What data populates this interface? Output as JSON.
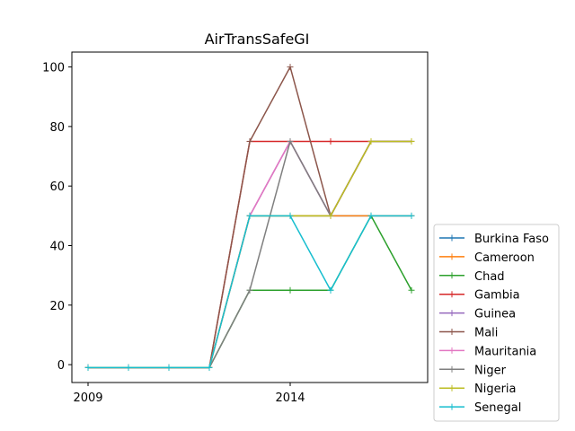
{
  "chart_data": {
    "type": "line",
    "title": "AirTransSafeGI",
    "xlabel": "",
    "ylabel": "",
    "x": [
      2009,
      2010,
      2011,
      2012,
      2013,
      2014,
      2015,
      2016,
      2017
    ],
    "xlim": [
      2008.6,
      2017.4
    ],
    "ylim": [
      -6,
      105
    ],
    "xticks": [
      2009,
      2014
    ],
    "yticks": [
      0,
      20,
      40,
      60,
      80,
      100
    ],
    "grid": false,
    "legend_position": "right-bottom",
    "series": [
      {
        "name": "Burkina Faso",
        "color": "#1f77b4",
        "values": [
          -1,
          -1,
          -1,
          -1,
          50,
          50,
          50,
          50,
          50
        ]
      },
      {
        "name": "Cameroon",
        "color": "#ff7f0e",
        "values": [
          -1,
          -1,
          -1,
          -1,
          50,
          50,
          50,
          50,
          50
        ]
      },
      {
        "name": "Chad",
        "color": "#2ca02c",
        "values": [
          -1,
          -1,
          -1,
          -1,
          25,
          25,
          25,
          50,
          25
        ]
      },
      {
        "name": "Gambia",
        "color": "#d62728",
        "values": [
          -1,
          -1,
          -1,
          -1,
          75,
          75,
          75,
          75,
          75
        ]
      },
      {
        "name": "Guinea",
        "color": "#9467bd",
        "values": [
          -1,
          -1,
          -1,
          -1,
          50,
          75,
          50,
          75,
          75
        ]
      },
      {
        "name": "Mali",
        "color": "#8c564b",
        "values": [
          -1,
          -1,
          -1,
          -1,
          75,
          100,
          50,
          75,
          75
        ]
      },
      {
        "name": "Mauritania",
        "color": "#e377c2",
        "values": [
          -1,
          -1,
          -1,
          -1,
          50,
          75,
          50,
          75,
          75
        ]
      },
      {
        "name": "Niger",
        "color": "#7f7f7f",
        "values": [
          -1,
          -1,
          -1,
          -1,
          25,
          75,
          50,
          75,
          75
        ]
      },
      {
        "name": "Nigeria",
        "color": "#bcbd22",
        "values": [
          -1,
          -1,
          -1,
          -1,
          50,
          50,
          50,
          75,
          75
        ]
      },
      {
        "name": "Senegal",
        "color": "#17becf",
        "values": [
          -1,
          -1,
          -1,
          -1,
          50,
          50,
          25,
          50,
          50
        ]
      }
    ]
  }
}
